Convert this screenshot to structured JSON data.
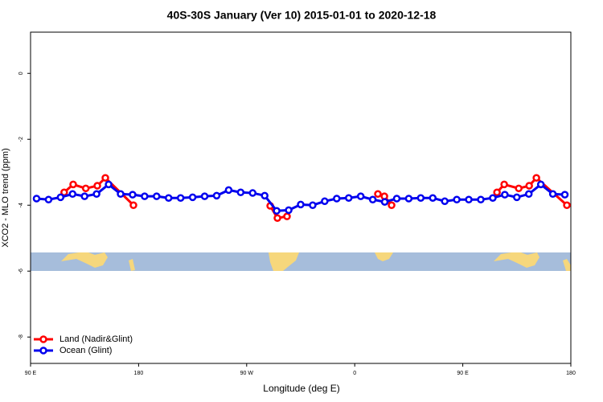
{
  "chart_data": {
    "type": "line",
    "title": "40S-30S January (Ver 10)   2015-01-01 to 2020-12-18",
    "xlabel": "Longitude (deg E)",
    "ylabel": "XCO2 - MLO trend (ppm)",
    "xlim": [
      90,
      540
    ],
    "ylim": [
      -8.8,
      1.25
    ],
    "xticks": [
      {
        "value": 90,
        "label": "90 E"
      },
      {
        "value": 180,
        "label": "180"
      },
      {
        "value": 270,
        "label": "90 W"
      },
      {
        "value": 360,
        "label": "0"
      },
      {
        "value": 450,
        "label": "90 E"
      },
      {
        "value": 540,
        "label": "180"
      }
    ],
    "yticks": [
      0,
      -2,
      -4,
      -6,
      -8
    ],
    "legend": "bottom-left",
    "series": [
      {
        "name": "Land (Nadir&Glint)",
        "color": "#ff0000",
        "x": [
          118,
          125.5,
          136,
          145.6,
          152.3,
          175.7,
          null,
          289.6,
          295.6,
          303.6,
          null,
          379.3,
          384.7,
          390.7,
          null,
          478.5,
          484.5,
          496.6,
          505.3,
          511.3,
          536.7
        ],
        "values": [
          -3.61,
          -3.37,
          -3.49,
          -3.41,
          -3.17,
          -4.0,
          null,
          -4.02,
          -4.39,
          -4.34,
          null,
          -3.66,
          -3.73,
          -4.0,
          null,
          -3.61,
          -3.37,
          -3.49,
          -3.41,
          -3.17,
          -4.0
        ]
      },
      {
        "name": "Ocean (Glint)",
        "color": "#0000ee",
        "x": [
          95,
          105,
          115,
          125,
          135,
          145,
          155,
          165,
          175,
          185,
          195,
          205,
          215,
          225,
          235,
          245,
          255,
          265,
          275,
          285,
          295,
          305,
          315,
          325,
          335,
          345,
          355,
          365,
          375,
          385,
          395,
          405,
          415,
          425,
          435,
          445,
          455,
          465,
          475,
          485,
          495,
          505,
          515,
          525,
          535
        ],
        "values": [
          -3.8,
          -3.83,
          -3.76,
          -3.66,
          -3.73,
          -3.66,
          -3.37,
          -3.66,
          -3.68,
          -3.73,
          -3.73,
          -3.78,
          -3.78,
          -3.76,
          -3.73,
          -3.71,
          -3.54,
          -3.61,
          -3.63,
          -3.71,
          -4.17,
          -4.15,
          -3.98,
          -4.0,
          -3.88,
          -3.8,
          -3.78,
          -3.73,
          -3.83,
          -3.9,
          -3.8,
          -3.8,
          -3.78,
          -3.78,
          -3.88,
          -3.83,
          -3.83,
          -3.83,
          -3.78,
          -3.68,
          -3.76,
          -3.66,
          -3.37,
          -3.66,
          -3.68
        ]
      }
    ]
  }
}
